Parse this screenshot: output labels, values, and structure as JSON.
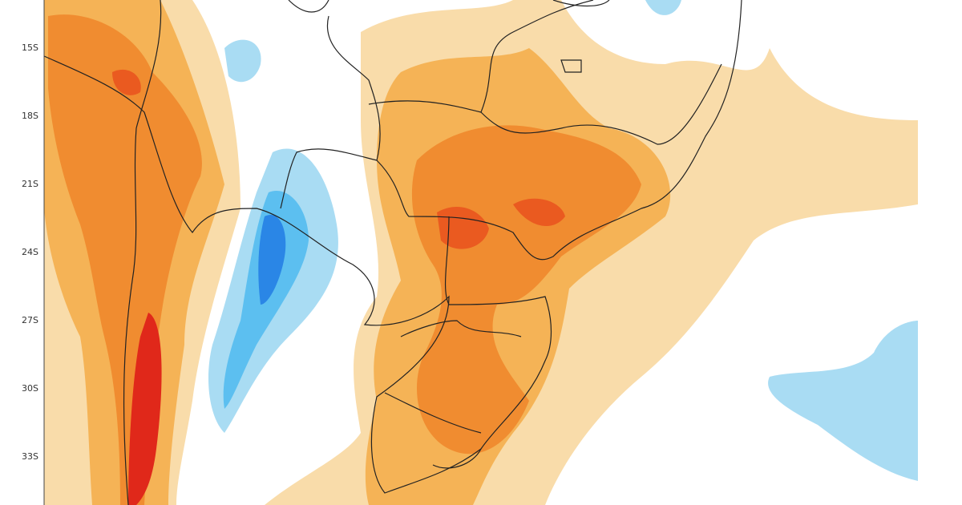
{
  "map": {
    "lat_labels": [
      "15S",
      "18S",
      "21S",
      "24S",
      "27S",
      "30S",
      "33S"
    ]
  }
}
